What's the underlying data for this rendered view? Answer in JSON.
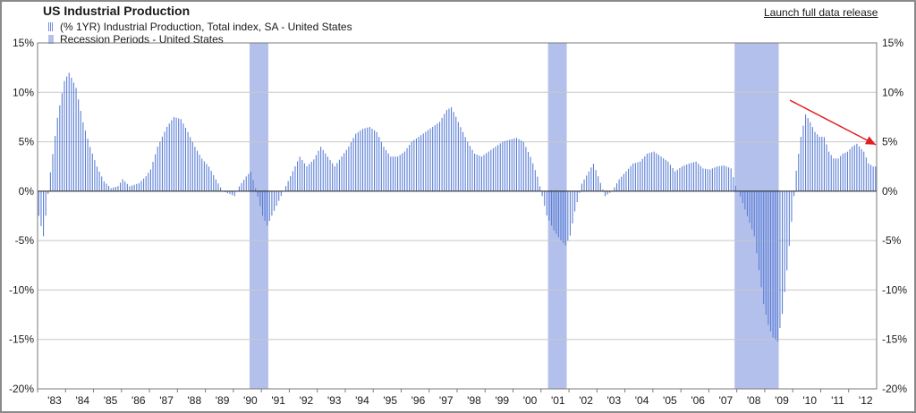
{
  "title": "US Industrial Production",
  "launch_link": "Launch full data release",
  "legend": {
    "series": "(% 1YR) Industrial Production, Total index, SA - United States",
    "recession": "Recession Periods - United States"
  },
  "colors": {
    "bar": "#5b7fd6",
    "recession": "#b3c0ec",
    "zero_line": "#1a1a1a",
    "arrow": "#e02020",
    "grid": "#c8c8c8"
  },
  "chart_data": {
    "type": "bar",
    "title": "US Industrial Production",
    "xlabel": "",
    "ylabel": "",
    "ylim": [
      -20,
      15
    ],
    "yticks": [
      15,
      10,
      5,
      0,
      -5,
      -10,
      -15,
      -20
    ],
    "ytick_labels": [
      "15%",
      "10%",
      "5%",
      "0%",
      "-5%",
      "-10%",
      "-15%",
      "-20%"
    ],
    "y_axis_both_sides": true,
    "grid": true,
    "xlim": [
      1983.0,
      2013.0
    ],
    "x_tick_labels": [
      "'83",
      "'84",
      "'85",
      "'86",
      "'87",
      "'88",
      "'89",
      "'90",
      "'91",
      "'92",
      "'93",
      "'94",
      "'95",
      "'96",
      "'97",
      "'98",
      "'99",
      "'00",
      "'01",
      "'02",
      "'03",
      "'04",
      "'05",
      "'06",
      "'07",
      "'08",
      "'09",
      "'10",
      "'11",
      "'12"
    ],
    "x_tick_years": [
      1983,
      1984,
      1985,
      1986,
      1987,
      1988,
      1989,
      1990,
      1991,
      1992,
      1993,
      1994,
      1995,
      1996,
      1997,
      1998,
      1999,
      2000,
      2001,
      2002,
      2003,
      2004,
      2005,
      2006,
      2007,
      2008,
      2009,
      2010,
      2011,
      2012
    ],
    "recessions": [
      {
        "start": 1990.58,
        "end": 1991.25
      },
      {
        "start": 2001.25,
        "end": 2001.92
      },
      {
        "start": 2007.92,
        "end": 2009.5
      }
    ],
    "series": [
      {
        "name": "(% 1YR) Industrial Production, Total index, SA - United States",
        "start": 1983.0,
        "frequency": "monthly",
        "anchors": [
          [
            1983.0,
            -2.5
          ],
          [
            1983.17,
            -4.6
          ],
          [
            1983.42,
            2.0
          ],
          [
            1983.67,
            7.5
          ],
          [
            1983.92,
            11.2
          ],
          [
            1984.08,
            12.0
          ],
          [
            1984.33,
            10.5
          ],
          [
            1984.58,
            7.0
          ],
          [
            1984.83,
            4.5
          ],
          [
            1985.08,
            2.5
          ],
          [
            1985.33,
            1.0
          ],
          [
            1985.58,
            0.3
          ],
          [
            1985.83,
            0.5
          ],
          [
            1986.0,
            1.2
          ],
          [
            1986.25,
            0.5
          ],
          [
            1986.58,
            0.8
          ],
          [
            1986.83,
            1.5
          ],
          [
            1987.0,
            2.2
          ],
          [
            1987.25,
            4.5
          ],
          [
            1987.58,
            6.5
          ],
          [
            1987.83,
            7.5
          ],
          [
            1988.08,
            7.3
          ],
          [
            1988.33,
            6.0
          ],
          [
            1988.58,
            4.5
          ],
          [
            1988.83,
            3.3
          ],
          [
            1989.08,
            2.5
          ],
          [
            1989.33,
            1.2
          ],
          [
            1989.58,
            0.0
          ],
          [
            1989.83,
            -0.3
          ],
          [
            1990.0,
            -0.5
          ],
          [
            1990.17,
            0.5
          ],
          [
            1990.42,
            1.5
          ],
          [
            1990.58,
            2.0
          ],
          [
            1990.83,
            -0.5
          ],
          [
            1991.0,
            -2.5
          ],
          [
            1991.17,
            -3.5
          ],
          [
            1991.33,
            -2.5
          ],
          [
            1991.58,
            -1.0
          ],
          [
            1991.83,
            0.5
          ],
          [
            1992.08,
            2.0
          ],
          [
            1992.33,
            3.5
          ],
          [
            1992.58,
            2.5
          ],
          [
            1992.83,
            3.2
          ],
          [
            1993.08,
            4.5
          ],
          [
            1993.33,
            3.5
          ],
          [
            1993.58,
            2.5
          ],
          [
            1993.83,
            3.5
          ],
          [
            1994.08,
            4.5
          ],
          [
            1994.33,
            5.8
          ],
          [
            1994.58,
            6.3
          ],
          [
            1994.83,
            6.5
          ],
          [
            1995.08,
            6.0
          ],
          [
            1995.33,
            4.5
          ],
          [
            1995.58,
            3.5
          ],
          [
            1995.83,
            3.5
          ],
          [
            1996.08,
            4.0
          ],
          [
            1996.33,
            5.0
          ],
          [
            1996.58,
            5.5
          ],
          [
            1996.83,
            6.0
          ],
          [
            1997.08,
            6.5
          ],
          [
            1997.33,
            7.0
          ],
          [
            1997.58,
            8.2
          ],
          [
            1997.75,
            8.5
          ],
          [
            1997.92,
            7.5
          ],
          [
            1998.08,
            6.5
          ],
          [
            1998.33,
            5.0
          ],
          [
            1998.58,
            3.8
          ],
          [
            1998.83,
            3.5
          ],
          [
            1999.08,
            4.0
          ],
          [
            1999.33,
            4.5
          ],
          [
            1999.58,
            5.0
          ],
          [
            1999.83,
            5.2
          ],
          [
            2000.08,
            5.4
          ],
          [
            2000.33,
            5.0
          ],
          [
            2000.58,
            3.5
          ],
          [
            2000.83,
            1.5
          ],
          [
            2001.0,
            -0.5
          ],
          [
            2001.17,
            -2.5
          ],
          [
            2001.42,
            -4.0
          ],
          [
            2001.67,
            -5.0
          ],
          [
            2001.83,
            -5.5
          ],
          [
            2002.0,
            -4.5
          ],
          [
            2002.17,
            -2.0
          ],
          [
            2002.42,
            0.8
          ],
          [
            2002.67,
            2.0
          ],
          [
            2002.83,
            2.8
          ],
          [
            2003.0,
            1.5
          ],
          [
            2003.25,
            -0.5
          ],
          [
            2003.5,
            0.0
          ],
          [
            2003.75,
            1.2
          ],
          [
            2004.0,
            2.0
          ],
          [
            2004.25,
            2.8
          ],
          [
            2004.5,
            3.0
          ],
          [
            2004.75,
            3.8
          ],
          [
            2005.0,
            4.0
          ],
          [
            2005.25,
            3.5
          ],
          [
            2005.5,
            3.0
          ],
          [
            2005.75,
            2.0
          ],
          [
            2006.0,
            2.5
          ],
          [
            2006.25,
            2.8
          ],
          [
            2006.5,
            3.0
          ],
          [
            2006.75,
            2.3
          ],
          [
            2007.0,
            2.2
          ],
          [
            2007.25,
            2.5
          ],
          [
            2007.5,
            2.6
          ],
          [
            2007.75,
            2.3
          ],
          [
            2007.92,
            0.5
          ],
          [
            2008.08,
            -0.5
          ],
          [
            2008.33,
            -2.5
          ],
          [
            2008.58,
            -4.5
          ],
          [
            2008.75,
            -8.0
          ],
          [
            2008.92,
            -11.5
          ],
          [
            2009.08,
            -13.5
          ],
          [
            2009.25,
            -14.8
          ],
          [
            2009.42,
            -15.2
          ],
          [
            2009.58,
            -12.5
          ],
          [
            2009.75,
            -8.0
          ],
          [
            2009.92,
            -3.0
          ],
          [
            2010.08,
            2.0
          ],
          [
            2010.25,
            5.5
          ],
          [
            2010.42,
            7.8
          ],
          [
            2010.58,
            7.0
          ],
          [
            2010.75,
            6.0
          ],
          [
            2010.92,
            5.5
          ],
          [
            2011.08,
            5.5
          ],
          [
            2011.25,
            4.0
          ],
          [
            2011.42,
            3.3
          ],
          [
            2011.58,
            3.3
          ],
          [
            2011.75,
            3.8
          ],
          [
            2011.92,
            4.0
          ],
          [
            2012.08,
            4.5
          ],
          [
            2012.25,
            4.8
          ],
          [
            2012.5,
            4.0
          ],
          [
            2012.67,
            2.8
          ],
          [
            2012.83,
            2.5
          ],
          [
            2012.92,
            2.5
          ]
        ]
      }
    ],
    "annotations": [
      {
        "type": "arrow",
        "from": {
          "x": 2009.9,
          "y": 9.2
        },
        "to": {
          "x": 2013.0,
          "y": 4.7
        }
      }
    ]
  }
}
